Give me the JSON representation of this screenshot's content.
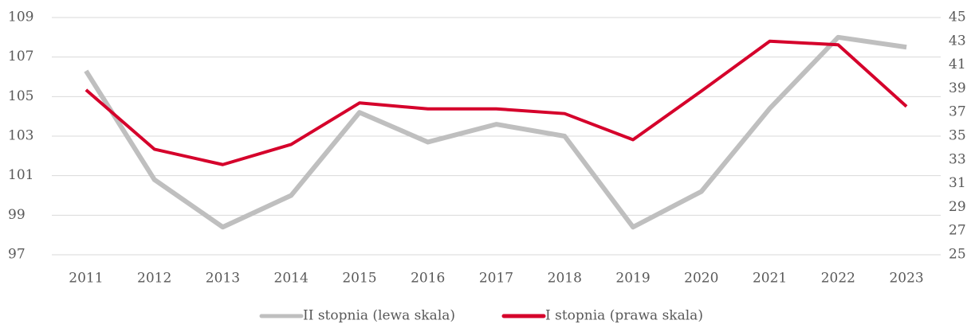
{
  "chart_data": {
    "type": "line",
    "categories": [
      "2011",
      "2012",
      "2013",
      "2014",
      "2015",
      "2016",
      "2017",
      "2018",
      "2019",
      "2020",
      "2021",
      "2022",
      "2023"
    ],
    "series": [
      {
        "name": "II stopnia (lewa skala)",
        "color": "#bfbfbf",
        "axis": "y",
        "values": [
          106.3,
          100.8,
          98.4,
          100.0,
          104.2,
          102.7,
          103.6,
          103.0,
          98.4,
          100.2,
          104.4,
          108.0,
          107.5
        ]
      },
      {
        "name": "I stopnia (prawa skala)",
        "color": "#d5002b",
        "axis": "y2",
        "values": [
          38.9,
          33.9,
          32.6,
          34.3,
          37.8,
          37.3,
          37.3,
          36.9,
          34.7,
          38.8,
          43.0,
          42.7,
          37.5
        ]
      }
    ],
    "ylim": [
      97,
      109
    ],
    "yticks": [
      97,
      99,
      101,
      103,
      105,
      107,
      109
    ],
    "y2lim": [
      25,
      45
    ],
    "y2ticks": [
      25,
      27,
      29,
      31,
      33,
      35,
      37,
      39,
      41,
      43,
      45
    ],
    "grid": true,
    "legend": "bottom"
  }
}
